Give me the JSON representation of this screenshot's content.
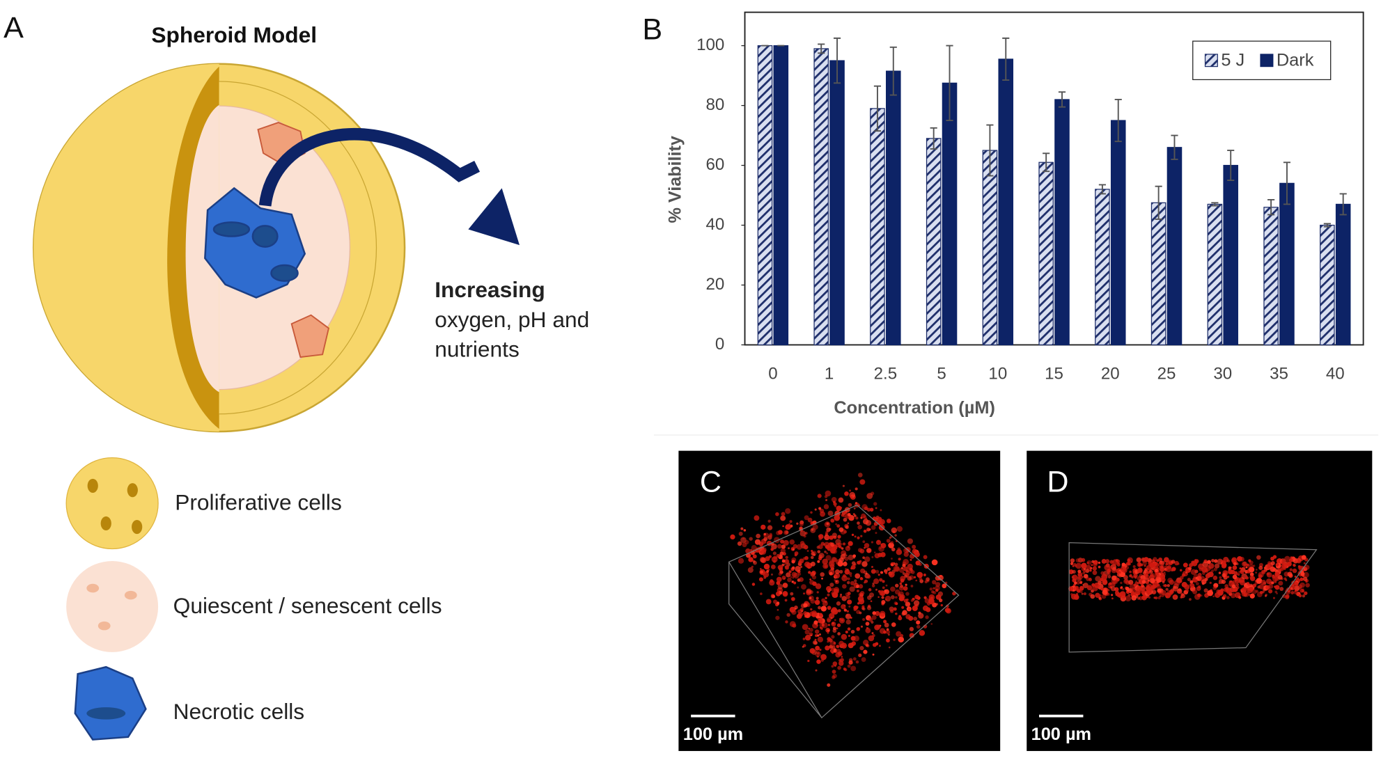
{
  "panel_a": {
    "label": "A",
    "title": "Spheroid Model",
    "arrow_text": [
      "Increasing",
      "oxygen, pH and",
      "nutrients"
    ],
    "legend": [
      "Proliferative cells",
      "Quiescent / senescent cells",
      "Necrotic cells"
    ]
  },
  "panel_b_label": "B",
  "panel_c": {
    "label": "C",
    "scale": "100 µm"
  },
  "panel_d": {
    "label": "D",
    "scale": "100 µm"
  },
  "chart_data": {
    "type": "bar",
    "ylabel": "% Viability",
    "xlabel": "Concentration (µM)",
    "categories": [
      "0",
      "1",
      "2.5",
      "5",
      "10",
      "15",
      "20",
      "25",
      "30",
      "35",
      "40"
    ],
    "series": [
      {
        "name": "5 J",
        "color": "#1f2f6b",
        "pattern": "hatch",
        "values": [
          100,
          99,
          79,
          69,
          65,
          61,
          52,
          47.5,
          47,
          46,
          40
        ],
        "errors": [
          0,
          1.5,
          7.5,
          3.5,
          8.5,
          3,
          1.5,
          5.5,
          0.5,
          2.5,
          0.5
        ]
      },
      {
        "name": "Dark",
        "color": "#0d2366",
        "values": [
          100,
          95,
          91.5,
          87.5,
          95.5,
          82,
          75,
          66,
          60,
          54,
          47
        ],
        "errors": [
          0,
          7.5,
          8,
          12.5,
          7,
          2.5,
          7,
          4,
          5,
          7,
          3.5
        ]
      }
    ],
    "ylim": [
      0,
      110
    ],
    "yticks": [
      0,
      20,
      40,
      60,
      80,
      100
    ],
    "legend": "top-right"
  }
}
